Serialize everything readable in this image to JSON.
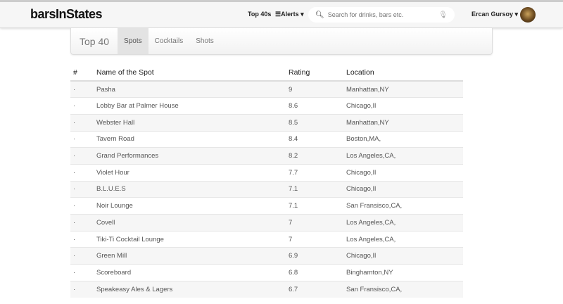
{
  "nav": {
    "brand": "barsInStates",
    "top40": "Top 40s",
    "alerts": "Alerts ▾",
    "search_placeholder": "Search for drinks, bars etc.",
    "user": "Ercan Gursoy ▾"
  },
  "panel": {
    "title": "Top 40",
    "tabs": [
      {
        "label": "Spots",
        "active": true
      },
      {
        "label": "Cocktails"
      },
      {
        "label": "Shots"
      }
    ]
  },
  "table": {
    "headers": [
      "#",
      "Name of the Spot",
      "Rating",
      "Location"
    ],
    "rows": [
      {
        "num": "·",
        "name": "Pasha",
        "rating": "9",
        "location": "Manhattan,NY"
      },
      {
        "num": "·",
        "name": "Lobby Bar at Palmer House",
        "rating": "8.6",
        "location": "Chicago,Il"
      },
      {
        "num": "·",
        "name": "Webster Hall",
        "rating": "8.5",
        "location": "Manhattan,NY"
      },
      {
        "num": "·",
        "name": "Tavern Road",
        "rating": "8.4",
        "location": "Boston,MA,"
      },
      {
        "num": "·",
        "name": "Grand Performances",
        "rating": "8.2",
        "location": "Los Angeles,CA,"
      },
      {
        "num": "·",
        "name": "Violet Hour",
        "rating": "7.7",
        "location": "Chicago,Il"
      },
      {
        "num": "·",
        "name": "B.L.U.E.S",
        "rating": "7.1",
        "location": "Chicago,Il"
      },
      {
        "num": "·",
        "name": "Noir Lounge",
        "rating": "7.1",
        "location": "San Fransisco,CA,"
      },
      {
        "num": "·",
        "name": "Covell",
        "rating": "7",
        "location": "Los Angeles,CA,"
      },
      {
        "num": "·",
        "name": "Tiki-Ti Cocktail Lounge",
        "rating": "7",
        "location": "Los Angeles,CA,"
      },
      {
        "num": "·",
        "name": "Green Mill",
        "rating": "6.9",
        "location": "Chicago,Il"
      },
      {
        "num": "·",
        "name": "Scoreboard",
        "rating": "6.8",
        "location": "Binghamton,NY"
      },
      {
        "num": "·",
        "name": "Speakeasy Ales & Lagers",
        "rating": "6.7",
        "location": "San Fransisco,CA,"
      }
    ]
  }
}
